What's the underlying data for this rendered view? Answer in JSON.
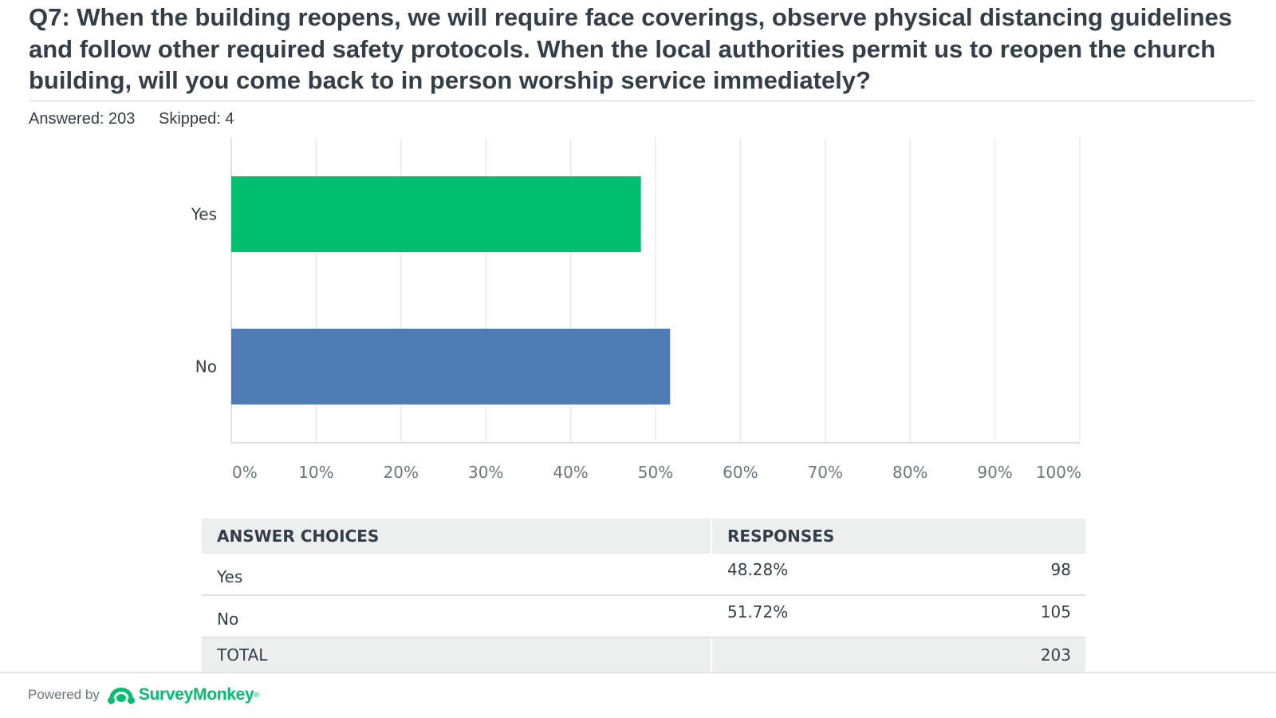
{
  "question": {
    "title": "Q7: When the building reopens, we will require face coverings, observe physical distancing guidelines and follow other required safety protocols.  When the local authorities permit us to reopen the church building, will you come back to in person worship service immediately?",
    "answered": "Answered: 203",
    "skipped": "Skipped: 4"
  },
  "chart_data": {
    "type": "bar",
    "orientation": "horizontal",
    "categories": [
      "Yes",
      "No"
    ],
    "values": [
      48.28,
      51.72
    ],
    "colors": [
      "#00bf6f",
      "#507cb6"
    ],
    "xlim": [
      0,
      100
    ],
    "xticks": [
      "0%",
      "10%",
      "20%",
      "30%",
      "40%",
      "50%",
      "60%",
      "70%",
      "80%",
      "90%",
      "100%"
    ],
    "grid": true
  },
  "table": {
    "headers": [
      "ANSWER CHOICES",
      "RESPONSES"
    ],
    "rows": [
      {
        "choice": "Yes",
        "percent": "48.28%",
        "count": "98"
      },
      {
        "choice": "No",
        "percent": "51.72%",
        "count": "105"
      }
    ],
    "total_label": "TOTAL",
    "total_count": "203"
  },
  "footer": {
    "powered_by": "Powered by",
    "brand": "SurveyMonkey",
    "brand_mark": "®",
    "logo_icon": "surveymonkey-logo-icon",
    "brand_color": "#00bf6f"
  }
}
